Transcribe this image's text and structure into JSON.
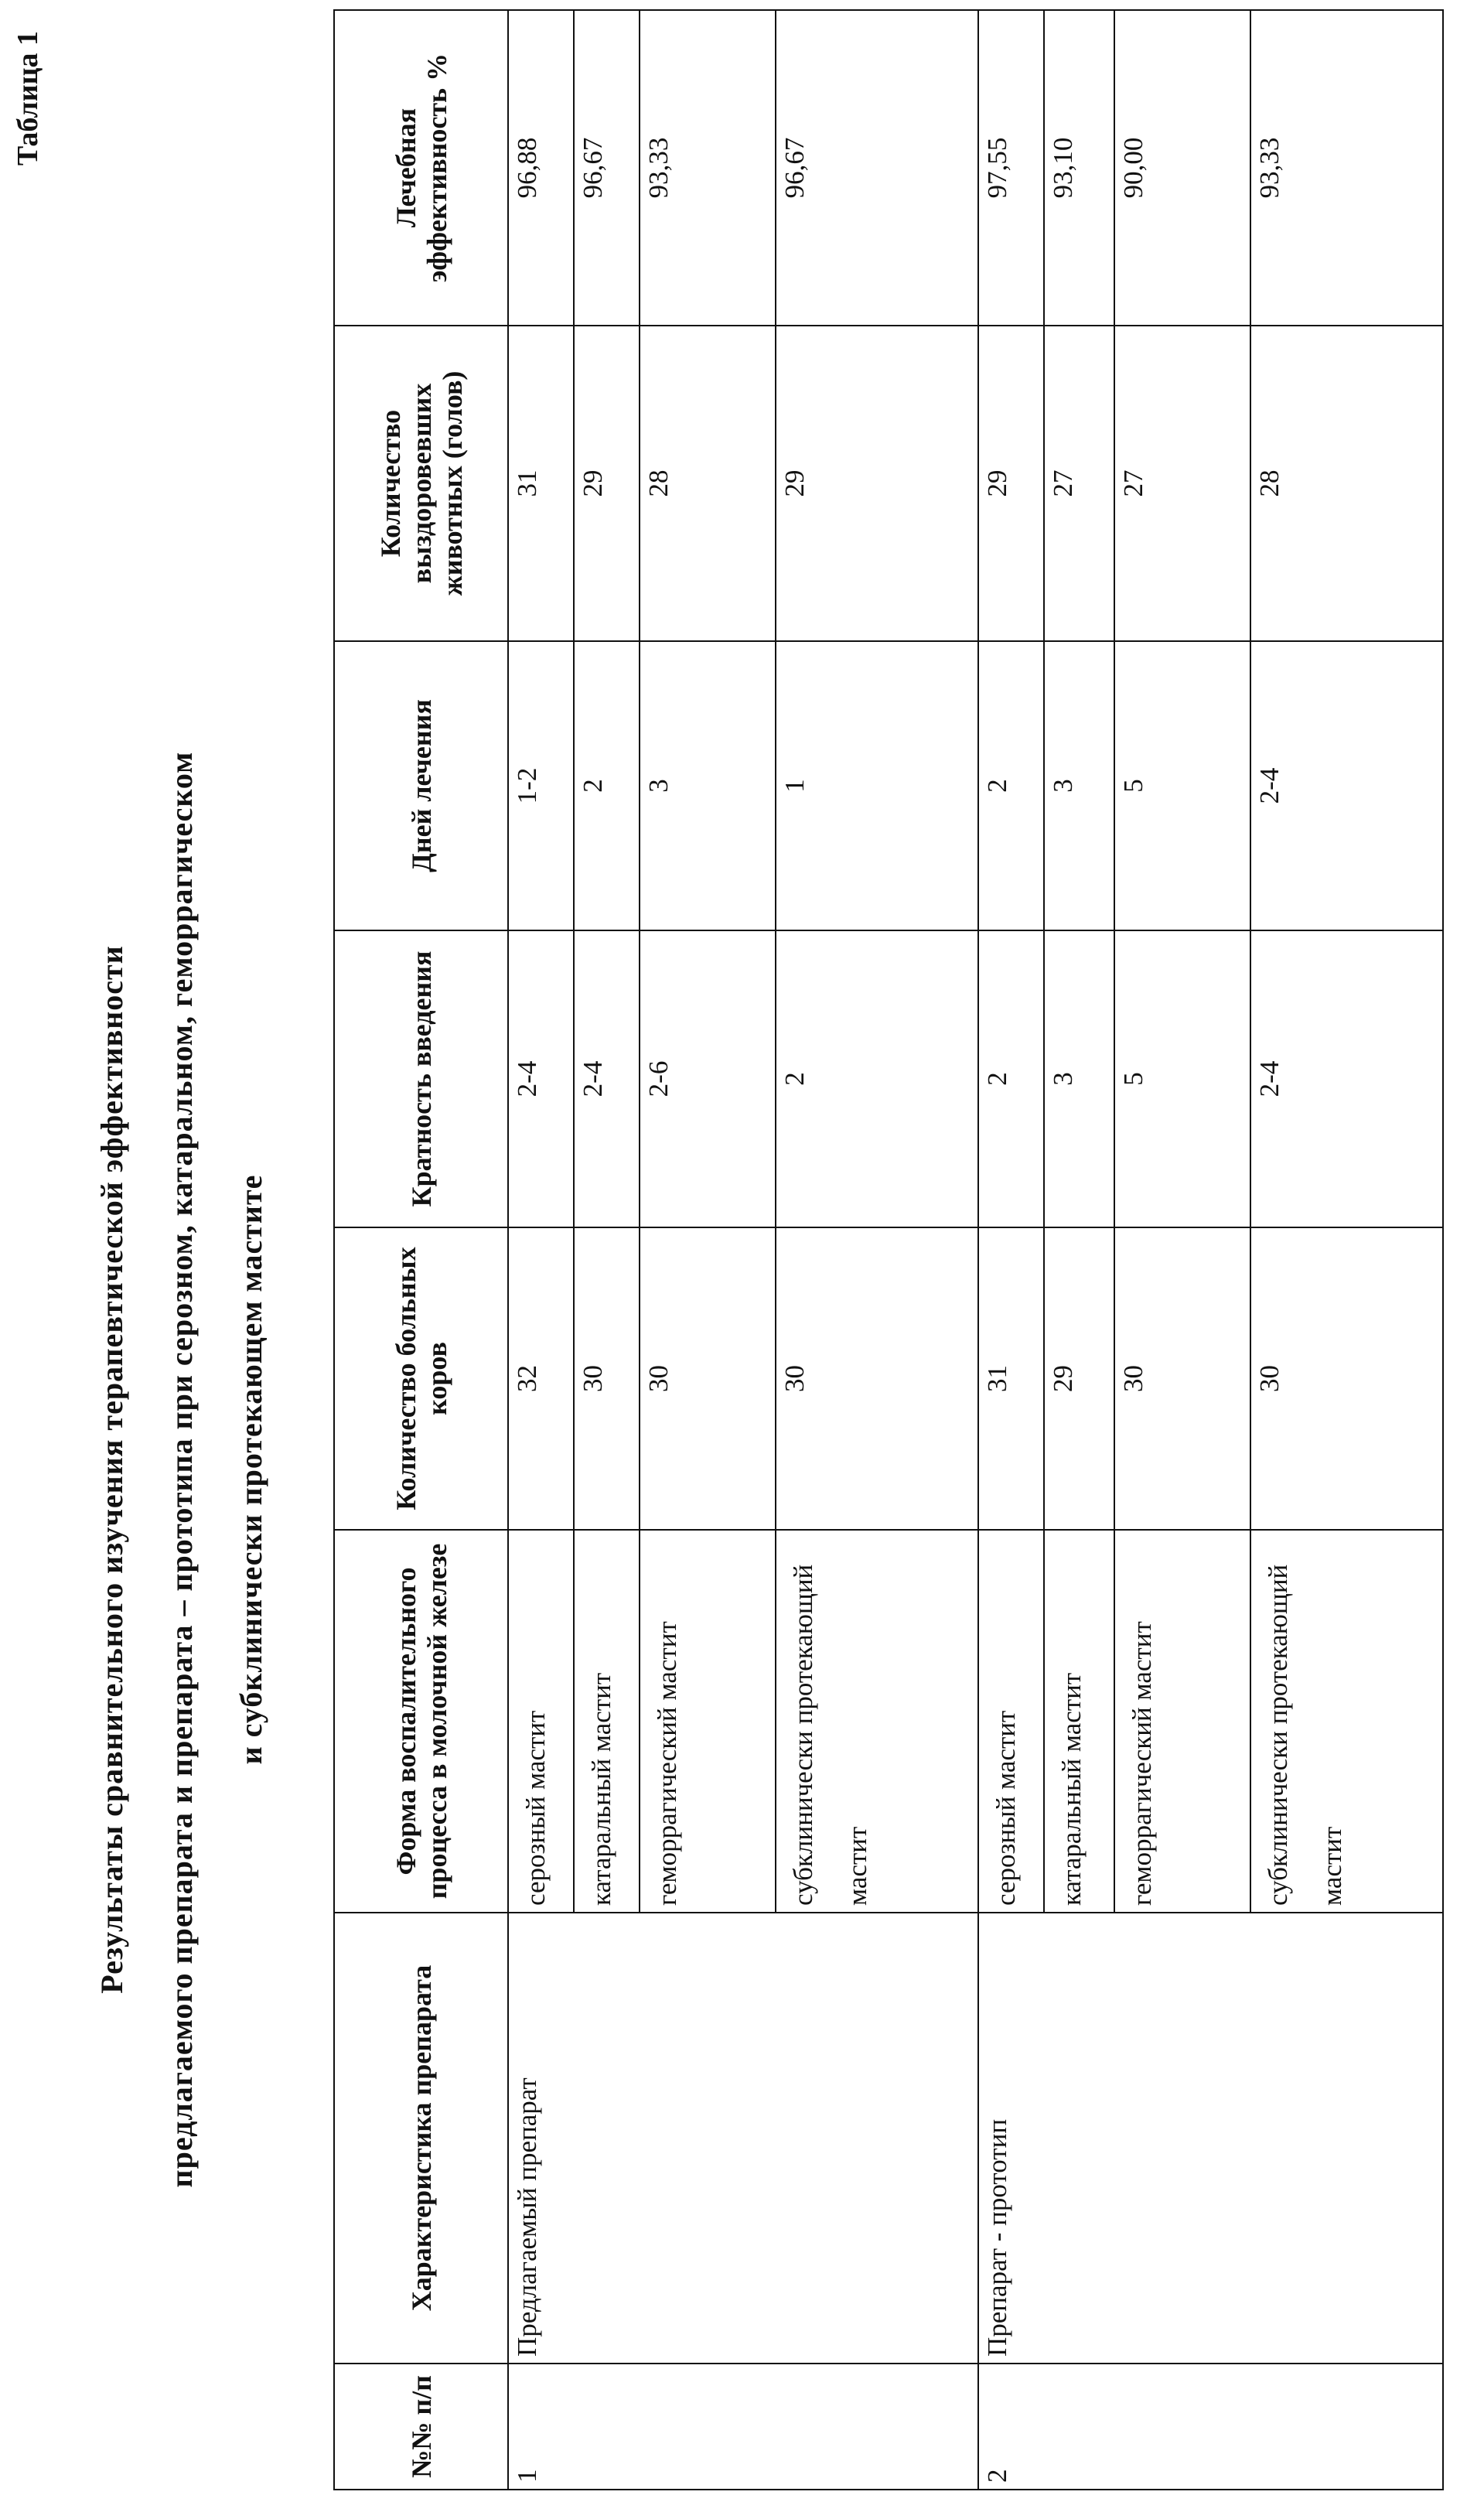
{
  "table_label": "Таблица 1",
  "title_lines": [
    "Результаты сравнительного изучения терапевтической эффективности",
    "предлагаемого препарата и препарата – прототипа при серозном, катаральном, геморрагическом",
    "и субклинически протекающем мастите"
  ],
  "headers": [
    "№№ п/п",
    "Характеристика препарата",
    "Форма воспалительного процесса в молочной железе",
    "Количество больных коров",
    "Кратность введения",
    "Дней лечения",
    "Количество выздоровевших животных (голов)",
    "Лечебная эффективность %"
  ],
  "groups": [
    {
      "num": "1",
      "drug": "Предлагаемый препарат",
      "rows": [
        {
          "form": "серозный мастит",
          "sick": "32",
          "freq": "2-4",
          "days": "1-2",
          "recovered": "31",
          "efficacy": "96,88"
        },
        {
          "form": "катаральный мастит",
          "sick": "30",
          "freq": "2-4",
          "days": "2",
          "recovered": "29",
          "efficacy": "96,67"
        },
        {
          "form": "геморрагический мастит",
          "sick": "30",
          "freq": "2-6",
          "days": "3",
          "recovered": "28",
          "efficacy": "93,33"
        },
        {
          "form": "субклинически протекающий мастит",
          "sick": "30",
          "freq": "2",
          "days": "1",
          "recovered": "29",
          "efficacy": "96,67"
        }
      ]
    },
    {
      "num": "2",
      "drug": "Препарат - прототип",
      "rows": [
        {
          "form": "серозный мастит",
          "sick": "31",
          "freq": "2",
          "days": "2",
          "recovered": "29",
          "efficacy": "97,55"
        },
        {
          "form": "катаральный мастит",
          "sick": "29",
          "freq": "3",
          "days": "3",
          "recovered": "27",
          "efficacy": "93,10"
        },
        {
          "form": "геморрагический мастит",
          "sick": "30",
          "freq": "5",
          "days": "5",
          "recovered": "27",
          "efficacy": "90,00"
        },
        {
          "form": "субклинически протекающий мастит",
          "sick": "30",
          "freq": "2-4",
          "days": "2-4",
          "recovered": "28",
          "efficacy": "93,33"
        }
      ]
    }
  ]
}
